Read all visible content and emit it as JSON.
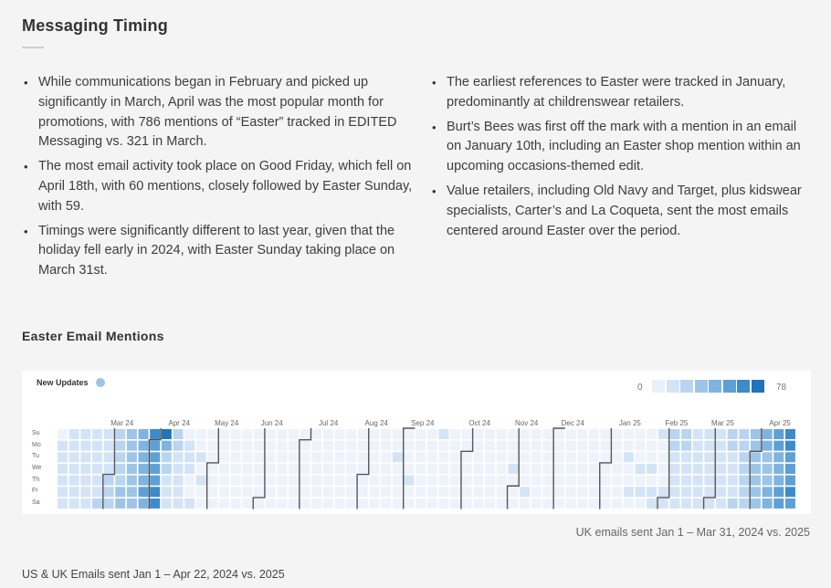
{
  "title": "Messaging Timing",
  "left_bullets": [
    "While communications began in February and picked up significantly in March, April was the most popular month for promotions, with 786 mentions of “Easter” tracked in EDITED Messaging vs. 321 in March.",
    "The most email activity took place on Good Friday, which fell on April 18th, with 60 mentions, closely followed by Easter Sunday, with 59.",
    "Timings were significantly different to last year, given that the holiday fell early in 2024, with Easter Sunday taking place on March 31st."
  ],
  "right_bullets": [
    "The earliest references to Easter were tracked in January, predominantly at childrenswear retailers.",
    "Burt’s Bees was first off the mark with a mention in an email on January 10th, including an Easter shop mention within an upcoming occasions-themed edit.",
    "Value retailers, including Old Navy and Target, plus kidswear specialists, Carter’s and La Coqueta, sent the most emails centered around Easter over the period."
  ],
  "chart_title": "Easter Email Mentions",
  "caption_uk": "UK emails sent Jan 1 – Mar 31, 2024 vs. 2025",
  "caption_us": "US & UK Emails sent Jan 1 – Apr 22, 2024 vs. 2025",
  "colors": {
    "background": "#f4f4f4",
    "empty_cell": "#eef3fb",
    "scale": [
      "#e8f1fb",
      "#d3e4f6",
      "#b9d5f0",
      "#9cc5e8",
      "#7fb3e0",
      "#5e9fd6",
      "#3c8bcc",
      "#1f74bb"
    ],
    "month_boundary": "#555555"
  },
  "chart_data": {
    "type": "heatmap",
    "legend": {
      "label": "New Updates",
      "min": 0,
      "max": 78
    },
    "day_labels": [
      "Su",
      "Mo",
      "Tu",
      "We",
      "Th",
      "Fr",
      "Sa"
    ],
    "month_labels": [
      {
        "label": "Mar 24",
        "week": 5
      },
      {
        "label": "Apr 24",
        "week": 10
      },
      {
        "label": "May 24",
        "week": 14
      },
      {
        "label": "Jun 24",
        "week": 18
      },
      {
        "label": "Jul 24",
        "week": 23
      },
      {
        "label": "Aug 24",
        "week": 27
      },
      {
        "label": "Sep 24",
        "week": 31
      },
      {
        "label": "Oct 24",
        "week": 36
      },
      {
        "label": "Nov 24",
        "week": 40
      },
      {
        "label": "Dec 24",
        "week": 44
      },
      {
        "label": "Jan 25",
        "week": 49
      },
      {
        "label": "Feb 25",
        "week": 53
      },
      {
        "label": "Mar 25",
        "week": 57
      },
      {
        "label": "Apr 25",
        "week": 62
      }
    ],
    "month_boundaries": [
      {
        "week": 4,
        "day": 4
      },
      {
        "week": 8,
        "day": 1
      },
      {
        "week": 13,
        "day": 3
      },
      {
        "week": 17,
        "day": 6
      },
      {
        "week": 21,
        "day": 1
      },
      {
        "week": 26,
        "day": 4
      },
      {
        "week": 30,
        "day": 0
      },
      {
        "week": 35,
        "day": 2
      },
      {
        "week": 39,
        "day": 5
      },
      {
        "week": 43,
        "day": 0
      },
      {
        "week": 47,
        "day": 3
      },
      {
        "week": 52,
        "day": 6
      },
      {
        "week": 56,
        "day": 6
      },
      {
        "week": 60,
        "day": 2
      }
    ],
    "weeks": 64,
    "nonzero_cells": [
      [
        0,
        1,
        1
      ],
      [
        0,
        2,
        1
      ],
      [
        0,
        3,
        1
      ],
      [
        0,
        4,
        1
      ],
      [
        0,
        5,
        1
      ],
      [
        0,
        6,
        1
      ],
      [
        1,
        0,
        1
      ],
      [
        1,
        1,
        1
      ],
      [
        1,
        2,
        1
      ],
      [
        1,
        3,
        1
      ],
      [
        1,
        4,
        1
      ],
      [
        1,
        5,
        1
      ],
      [
        1,
        6,
        1
      ],
      [
        2,
        0,
        1
      ],
      [
        2,
        1,
        1
      ],
      [
        2,
        2,
        1
      ],
      [
        2,
        3,
        1
      ],
      [
        2,
        4,
        1
      ],
      [
        2,
        5,
        1
      ],
      [
        2,
        6,
        1
      ],
      [
        3,
        0,
        1
      ],
      [
        3,
        1,
        1
      ],
      [
        3,
        2,
        1
      ],
      [
        3,
        3,
        1
      ],
      [
        3,
        4,
        1
      ],
      [
        3,
        5,
        1
      ],
      [
        3,
        6,
        2
      ],
      [
        4,
        0,
        1
      ],
      [
        4,
        1,
        1
      ],
      [
        4,
        2,
        1
      ],
      [
        4,
        3,
        1
      ],
      [
        4,
        4,
        2
      ],
      [
        4,
        5,
        2
      ],
      [
        4,
        6,
        2
      ],
      [
        5,
        0,
        2
      ],
      [
        5,
        1,
        2
      ],
      [
        5,
        2,
        2
      ],
      [
        5,
        3,
        2
      ],
      [
        5,
        4,
        2
      ],
      [
        5,
        5,
        3
      ],
      [
        5,
        6,
        3
      ],
      [
        6,
        0,
        3
      ],
      [
        6,
        1,
        3
      ],
      [
        6,
        2,
        3
      ],
      [
        6,
        3,
        3
      ],
      [
        6,
        4,
        3
      ],
      [
        6,
        5,
        3
      ],
      [
        6,
        6,
        3
      ],
      [
        7,
        0,
        4
      ],
      [
        7,
        1,
        4
      ],
      [
        7,
        2,
        4
      ],
      [
        7,
        3,
        4
      ],
      [
        7,
        4,
        4
      ],
      [
        7,
        5,
        5
      ],
      [
        7,
        6,
        4
      ],
      [
        8,
        0,
        6
      ],
      [
        8,
        1,
        5
      ],
      [
        8,
        2,
        5
      ],
      [
        8,
        3,
        5
      ],
      [
        8,
        4,
        5
      ],
      [
        8,
        5,
        6
      ],
      [
        8,
        6,
        6
      ],
      [
        9,
        0,
        7
      ],
      [
        9,
        1,
        4
      ],
      [
        9,
        2,
        2
      ],
      [
        9,
        3,
        2
      ],
      [
        9,
        4,
        1
      ],
      [
        9,
        5,
        1
      ],
      [
        9,
        6,
        1
      ],
      [
        10,
        0,
        2
      ],
      [
        10,
        1,
        2
      ],
      [
        10,
        2,
        1
      ],
      [
        10,
        3,
        1
      ],
      [
        10,
        4,
        1
      ],
      [
        10,
        5,
        1
      ],
      [
        10,
        6,
        1
      ],
      [
        11,
        1,
        1
      ],
      [
        11,
        2,
        1
      ],
      [
        11,
        3,
        1
      ],
      [
        11,
        6,
        1
      ],
      [
        12,
        2,
        1
      ],
      [
        12,
        4,
        1
      ],
      [
        29,
        2,
        1
      ],
      [
        30,
        4,
        1
      ],
      [
        33,
        0,
        1
      ],
      [
        39,
        3,
        1
      ],
      [
        40,
        5,
        1
      ],
      [
        49,
        2,
        1
      ],
      [
        49,
        5,
        1
      ],
      [
        50,
        3,
        1
      ],
      [
        51,
        3,
        1
      ],
      [
        50,
        5,
        1
      ],
      [
        51,
        5,
        1
      ],
      [
        51,
        6,
        1
      ],
      [
        52,
        0,
        1
      ],
      [
        52,
        5,
        1
      ],
      [
        52,
        6,
        1
      ],
      [
        53,
        0,
        2
      ],
      [
        53,
        1,
        2
      ],
      [
        53,
        2,
        1
      ],
      [
        53,
        3,
        1
      ],
      [
        53,
        4,
        1
      ],
      [
        53,
        5,
        1
      ],
      [
        53,
        6,
        1
      ],
      [
        54,
        0,
        2
      ],
      [
        54,
        1,
        2
      ],
      [
        54,
        2,
        1
      ],
      [
        54,
        3,
        1
      ],
      [
        54,
        4,
        1
      ],
      [
        54,
        5,
        1
      ],
      [
        54,
        6,
        1
      ],
      [
        55,
        0,
        1
      ],
      [
        55,
        1,
        1
      ],
      [
        55,
        2,
        1
      ],
      [
        55,
        3,
        1
      ],
      [
        55,
        4,
        1
      ],
      [
        55,
        5,
        1
      ],
      [
        55,
        6,
        1
      ],
      [
        56,
        0,
        1
      ],
      [
        56,
        1,
        1
      ],
      [
        56,
        2,
        1
      ],
      [
        56,
        3,
        1
      ],
      [
        56,
        4,
        1
      ],
      [
        56,
        5,
        1
      ],
      [
        56,
        6,
        1
      ],
      [
        57,
        0,
        1
      ],
      [
        57,
        1,
        1
      ],
      [
        57,
        2,
        1
      ],
      [
        57,
        3,
        1
      ],
      [
        57,
        4,
        1
      ],
      [
        57,
        5,
        1
      ],
      [
        57,
        6,
        1
      ],
      [
        58,
        0,
        2
      ],
      [
        58,
        1,
        2
      ],
      [
        58,
        2,
        1
      ],
      [
        58,
        3,
        1
      ],
      [
        58,
        4,
        1
      ],
      [
        58,
        5,
        1
      ],
      [
        58,
        6,
        2
      ],
      [
        59,
        0,
        2
      ],
      [
        59,
        1,
        2
      ],
      [
        59,
        2,
        2
      ],
      [
        59,
        3,
        2
      ],
      [
        59,
        4,
        2
      ],
      [
        59,
        5,
        2
      ],
      [
        59,
        6,
        2
      ],
      [
        60,
        0,
        3
      ],
      [
        60,
        1,
        3
      ],
      [
        60,
        2,
        3
      ],
      [
        60,
        3,
        3
      ],
      [
        60,
        4,
        3
      ],
      [
        60,
        5,
        3
      ],
      [
        60,
        6,
        3
      ],
      [
        61,
        0,
        4
      ],
      [
        61,
        1,
        4
      ],
      [
        61,
        2,
        3
      ],
      [
        61,
        3,
        3
      ],
      [
        61,
        4,
        3
      ],
      [
        61,
        5,
        4
      ],
      [
        61,
        6,
        4
      ],
      [
        62,
        0,
        5
      ],
      [
        62,
        1,
        5
      ],
      [
        62,
        2,
        4
      ],
      [
        62,
        3,
        4
      ],
      [
        62,
        4,
        4
      ],
      [
        62,
        5,
        5
      ],
      [
        62,
        6,
        5
      ],
      [
        63,
        0,
        6
      ],
      [
        63,
        1,
        6
      ],
      [
        63,
        2,
        5
      ],
      [
        63,
        3,
        5
      ],
      [
        63,
        4,
        5
      ],
      [
        63,
        5,
        6
      ],
      [
        63,
        6,
        5
      ]
    ]
  }
}
